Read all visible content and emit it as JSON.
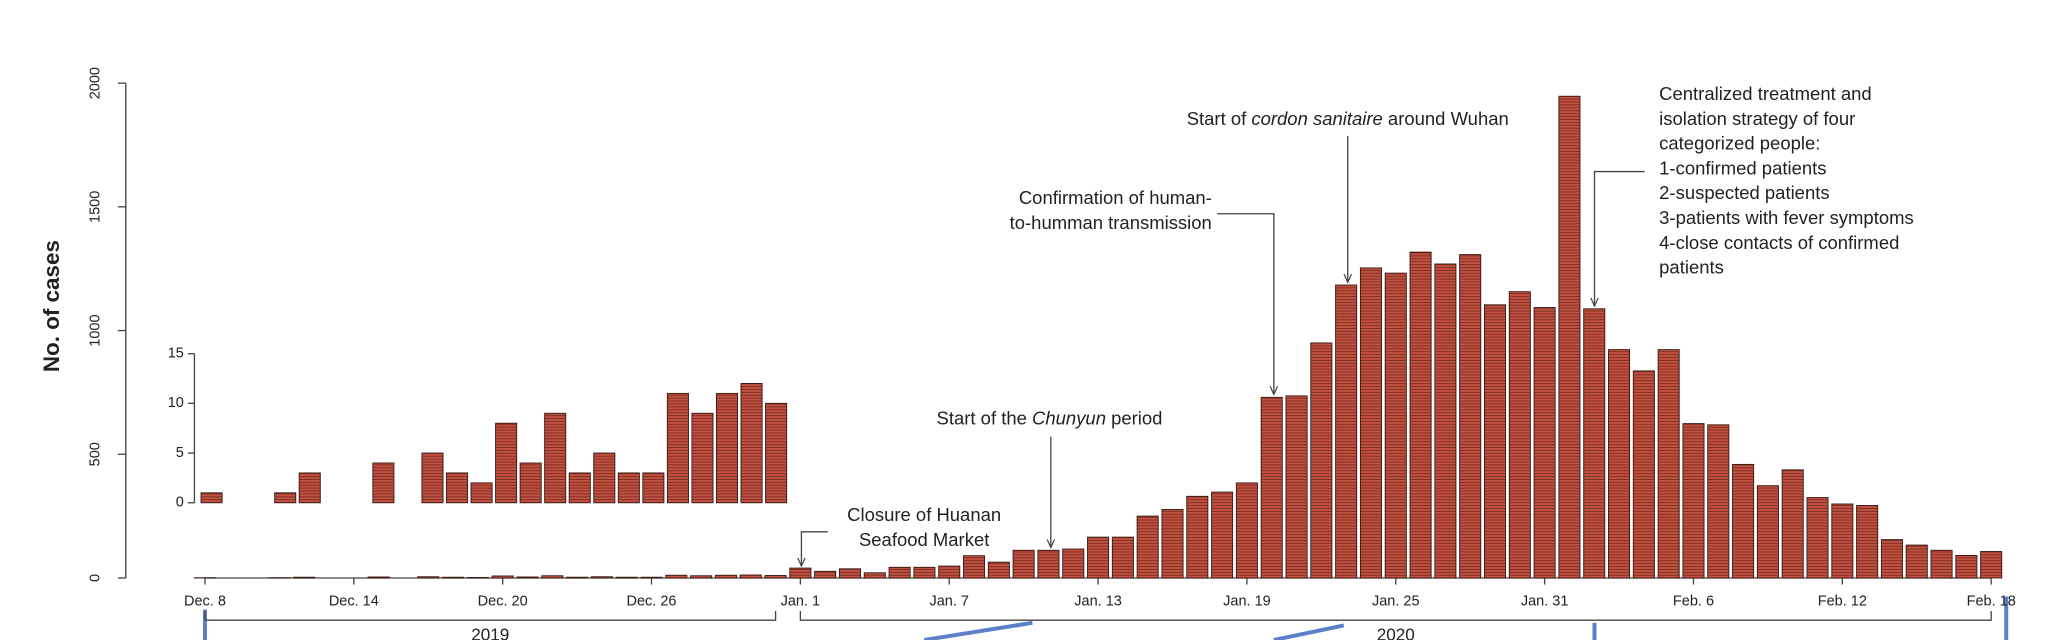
{
  "chart_data": {
    "type": "bar",
    "y_label": "No. of cases",
    "categories": [
      "Dec. 8",
      null,
      null,
      null,
      null,
      null,
      "Dec. 14",
      null,
      null,
      null,
      null,
      null,
      "Dec. 20",
      null,
      null,
      null,
      null,
      null,
      "Dec. 26",
      null,
      null,
      null,
      null,
      null,
      "Jan. 1",
      null,
      null,
      null,
      null,
      null,
      "Jan. 7",
      null,
      null,
      null,
      null,
      null,
      "Jan. 13",
      null,
      null,
      null,
      null,
      null,
      "Jan. 19",
      null,
      null,
      null,
      null,
      null,
      "Jan. 25",
      null,
      null,
      null,
      null,
      null,
      "Jan. 31",
      null,
      null,
      null,
      null,
      null,
      "Feb. 6",
      null,
      null,
      null,
      null,
      null,
      "Feb. 12",
      null,
      null,
      null,
      null,
      null,
      "Feb. 18"
    ],
    "series": [
      {
        "name": "Cases",
        "color": "#c4503f",
        "values": [
          1,
          0,
          0,
          1,
          3,
          0,
          0,
          4,
          0,
          5,
          3,
          2,
          8,
          4,
          9,
          3,
          5,
          3,
          3,
          11,
          9,
          11,
          12,
          10,
          40,
          27,
          37,
          21,
          43,
          43,
          48,
          90,
          64,
          112,
          112,
          117,
          165,
          165,
          250,
          277,
          330,
          347,
          384,
          730,
          736,
          950,
          1184,
          1253,
          1232,
          1317,
          1269,
          1307,
          1104,
          1157,
          1093,
          1947,
          1088,
          923,
          837,
          923,
          624,
          619,
          459,
          373,
          437,
          325,
          299,
          293,
          155,
          133,
          112,
          91,
          107
        ]
      }
    ],
    "ylim": [
      0,
      2000
    ],
    "yticks": [
      0,
      500,
      1000,
      1500,
      2000
    ],
    "inset": {
      "values": [
        1,
        0,
        0,
        1,
        3,
        0,
        0,
        4,
        0,
        5,
        3,
        2,
        8,
        4,
        9,
        3,
        5,
        3,
        3,
        11,
        9,
        11,
        12,
        10
      ],
      "ylim": [
        0,
        15
      ],
      "yticks": [
        0,
        5,
        10,
        15
      ]
    },
    "annotations": [
      {
        "lines": [
          [
            "Closure of Huanan"
          ],
          [
            "Seafood Market"
          ]
        ]
      },
      {
        "lines": [
          [
            "Start of the ",
            "Chunyun",
            " period"
          ]
        ]
      },
      {
        "lines": [
          [
            "Confirmation of human-"
          ],
          [
            "to-humman transmission"
          ]
        ]
      },
      {
        "lines": [
          [
            "Start of ",
            "cordon sanitaire",
            " around Wuhan"
          ]
        ]
      },
      {
        "lines": [
          [
            "Centralized treatment and"
          ],
          [
            "isolation strategy of four"
          ],
          [
            "categorized people:"
          ],
          [
            "1-confirmed patients"
          ],
          [
            "2-suspected patients"
          ],
          [
            "3-patients with fever symptoms"
          ],
          [
            "4-close contacts of confirmed"
          ],
          [
            "patients"
          ]
        ]
      }
    ],
    "periods": [
      "2019",
      "2020"
    ]
  }
}
